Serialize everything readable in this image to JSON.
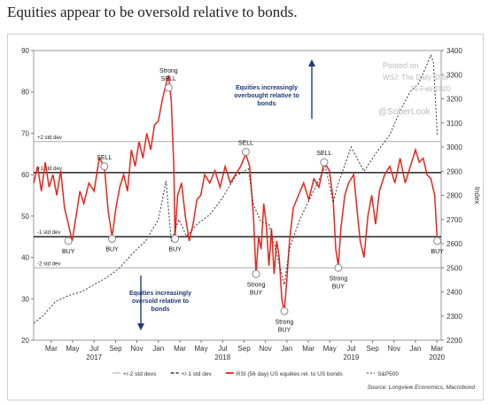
{
  "headline": "Equities appear to be oversold relative to bonds.",
  "chart_data": {
    "type": "line",
    "title": "",
    "y_left": {
      "ylim": [
        20,
        90
      ],
      "ticks": [
        20,
        30,
        40,
        50,
        60,
        70,
        80,
        90
      ]
    },
    "y_right": {
      "label": "Index",
      "ylim": [
        2200,
        3400
      ],
      "ticks": [
        2200,
        2300,
        2400,
        2500,
        2600,
        2700,
        2800,
        2900,
        3000,
        3100,
        3200,
        3300,
        3400
      ]
    },
    "x_ticks": [
      {
        "label": "Mar",
        "t": 2017.167
      },
      {
        "label": "May",
        "t": 2017.333
      },
      {
        "label": "Jul",
        "t": 2017.5
      },
      {
        "label": "Sep",
        "t": 2017.667
      },
      {
        "label": "Nov",
        "t": 2017.833
      },
      {
        "label": "Jan",
        "t": 2018.0
      },
      {
        "label": "Mar",
        "t": 2018.167
      },
      {
        "label": "May",
        "t": 2018.333
      },
      {
        "label": "Jul",
        "t": 2018.5
      },
      {
        "label": "Sep",
        "t": 2018.667
      },
      {
        "label": "Nov",
        "t": 2018.833
      },
      {
        "label": "Jan",
        "t": 2019.0
      },
      {
        "label": "Mar",
        "t": 2019.167
      },
      {
        "label": "May",
        "t": 2019.333
      },
      {
        "label": "Jul",
        "t": 2019.5
      },
      {
        "label": "Sep",
        "t": 2019.667
      },
      {
        "label": "Nov",
        "t": 2019.833
      },
      {
        "label": "Jan",
        "t": 2020.0
      },
      {
        "label": "Mar",
        "t": 2020.167
      }
    ],
    "year_labels": [
      {
        "label": "2017",
        "t": 2017.5
      },
      {
        "label": "2018",
        "t": 2018.5
      },
      {
        "label": "2019",
        "t": 2019.5
      },
      {
        "label": "2020",
        "t": 2020.167
      }
    ],
    "xlim": [
      2017.03,
      2020.2
    ],
    "reference_lines": [
      {
        "name": "+2 std dev",
        "value": 68,
        "style": "2sd"
      },
      {
        "name": "+1 std dev",
        "value": 60.5,
        "style": "1sd"
      },
      {
        "name": "-1 std dev",
        "value": 45,
        "style": "1sd"
      },
      {
        "name": "-2 std dev",
        "value": 37.5,
        "style": "2sd"
      }
    ],
    "series": [
      {
        "name": "RSI (56 day) US equities rel. to US bonds",
        "axis": "left",
        "color": "#e8251c",
        "points": [
          [
            2017.03,
            58
          ],
          [
            2017.06,
            62
          ],
          [
            2017.09,
            56
          ],
          [
            2017.12,
            63
          ],
          [
            2017.15,
            57
          ],
          [
            2017.18,
            60
          ],
          [
            2017.21,
            55
          ],
          [
            2017.24,
            61
          ],
          [
            2017.27,
            52
          ],
          [
            2017.3,
            48
          ],
          [
            2017.33,
            44
          ],
          [
            2017.36,
            50
          ],
          [
            2017.39,
            56
          ],
          [
            2017.42,
            53
          ],
          [
            2017.46,
            58
          ],
          [
            2017.5,
            56
          ],
          [
            2017.54,
            64
          ],
          [
            2017.58,
            62
          ],
          [
            2017.61,
            51
          ],
          [
            2017.64,
            45
          ],
          [
            2017.67,
            52
          ],
          [
            2017.7,
            57
          ],
          [
            2017.73,
            60
          ],
          [
            2017.76,
            56
          ],
          [
            2017.79,
            66
          ],
          [
            2017.82,
            62
          ],
          [
            2017.85,
            68
          ],
          [
            2017.88,
            64
          ],
          [
            2017.91,
            70
          ],
          [
            2017.94,
            66
          ],
          [
            2017.97,
            72
          ],
          [
            2018.0,
            73
          ],
          [
            2018.03,
            78
          ],
          [
            2018.06,
            82
          ],
          [
            2018.08,
            84
          ],
          [
            2018.1,
            78
          ],
          [
            2018.12,
            62
          ],
          [
            2018.13,
            45
          ],
          [
            2018.15,
            55
          ],
          [
            2018.18,
            58
          ],
          [
            2018.21,
            50
          ],
          [
            2018.24,
            44
          ],
          [
            2018.27,
            48
          ],
          [
            2018.3,
            54
          ],
          [
            2018.33,
            55
          ],
          [
            2018.36,
            60
          ],
          [
            2018.4,
            58
          ],
          [
            2018.44,
            61
          ],
          [
            2018.48,
            57
          ],
          [
            2018.52,
            62
          ],
          [
            2018.56,
            58
          ],
          [
            2018.6,
            60
          ],
          [
            2018.64,
            62
          ],
          [
            2018.68,
            65
          ],
          [
            2018.71,
            62
          ],
          [
            2018.74,
            50
          ],
          [
            2018.76,
            36
          ],
          [
            2018.78,
            45
          ],
          [
            2018.8,
            42
          ],
          [
            2018.82,
            53
          ],
          [
            2018.84,
            48
          ],
          [
            2018.86,
            38
          ],
          [
            2018.88,
            47
          ],
          [
            2018.9,
            36
          ],
          [
            2018.92,
            44
          ],
          [
            2018.94,
            40
          ],
          [
            2018.96,
            30
          ],
          [
            2018.98,
            27
          ],
          [
            2019.0,
            35
          ],
          [
            2019.02,
            44
          ],
          [
            2019.05,
            52
          ],
          [
            2019.09,
            55
          ],
          [
            2019.13,
            58
          ],
          [
            2019.17,
            54
          ],
          [
            2019.21,
            59
          ],
          [
            2019.25,
            57
          ],
          [
            2019.29,
            63
          ],
          [
            2019.33,
            61
          ],
          [
            2019.36,
            54
          ],
          [
            2019.38,
            42
          ],
          [
            2019.4,
            38
          ],
          [
            2019.42,
            47
          ],
          [
            2019.45,
            55
          ],
          [
            2019.48,
            58
          ],
          [
            2019.52,
            60
          ],
          [
            2019.55,
            50
          ],
          [
            2019.57,
            44
          ],
          [
            2019.6,
            40
          ],
          [
            2019.63,
            50
          ],
          [
            2019.66,
            55
          ],
          [
            2019.69,
            48
          ],
          [
            2019.72,
            56
          ],
          [
            2019.76,
            60
          ],
          [
            2019.8,
            62
          ],
          [
            2019.84,
            58
          ],
          [
            2019.88,
            64
          ],
          [
            2019.92,
            58
          ],
          [
            2019.96,
            62
          ],
          [
            2020.0,
            66
          ],
          [
            2020.03,
            63
          ],
          [
            2020.06,
            64
          ],
          [
            2020.09,
            60
          ],
          [
            2020.12,
            59
          ],
          [
            2020.15,
            55
          ],
          [
            2020.17,
            44
          ]
        ]
      },
      {
        "name": "S&P500",
        "axis": "right",
        "color": "#333333",
        "points": [
          [
            2017.03,
            2270
          ],
          [
            2017.1,
            2300
          ],
          [
            2017.2,
            2360
          ],
          [
            2017.3,
            2385
          ],
          [
            2017.4,
            2400
          ],
          [
            2017.5,
            2430
          ],
          [
            2017.6,
            2460
          ],
          [
            2017.7,
            2500
          ],
          [
            2017.8,
            2560
          ],
          [
            2017.9,
            2610
          ],
          [
            2018.0,
            2700
          ],
          [
            2018.06,
            2860
          ],
          [
            2018.1,
            2610
          ],
          [
            2018.16,
            2700
          ],
          [
            2018.22,
            2630
          ],
          [
            2018.3,
            2680
          ],
          [
            2018.4,
            2720
          ],
          [
            2018.5,
            2790
          ],
          [
            2018.6,
            2880
          ],
          [
            2018.7,
            2910
          ],
          [
            2018.74,
            2760
          ],
          [
            2018.8,
            2690
          ],
          [
            2018.86,
            2680
          ],
          [
            2018.92,
            2560
          ],
          [
            2018.98,
            2430
          ],
          [
            2019.02,
            2580
          ],
          [
            2019.1,
            2700
          ],
          [
            2019.2,
            2810
          ],
          [
            2019.3,
            2920
          ],
          [
            2019.36,
            2770
          ],
          [
            2019.4,
            2850
          ],
          [
            2019.5,
            3000
          ],
          [
            2019.6,
            2900
          ],
          [
            2019.7,
            2980
          ],
          [
            2019.8,
            3050
          ],
          [
            2019.88,
            3150
          ],
          [
            2019.96,
            3230
          ],
          [
            2020.02,
            3260
          ],
          [
            2020.08,
            3330
          ],
          [
            2020.12,
            3380
          ],
          [
            2020.14,
            3350
          ],
          [
            2020.17,
            3050
          ]
        ]
      }
    ],
    "annotations": [
      {
        "text": "Strong\nSELL",
        "t": 2018.08,
        "v": 81
      },
      {
        "text": "SELL",
        "t": 2017.58,
        "v": 62
      },
      {
        "text": "SELL",
        "t": 2018.68,
        "v": 65.5
      },
      {
        "text": "SELL",
        "t": 2019.29,
        "v": 63
      },
      {
        "text": "BUY",
        "t": 2017.3,
        "v": 44
      },
      {
        "text": "BUY",
        "t": 2017.64,
        "v": 44.5
      },
      {
        "text": "BUY",
        "t": 2018.13,
        "v": 44.5
      },
      {
        "text": "Strong\nBUY",
        "t": 2018.76,
        "v": 36
      },
      {
        "text": "Strong\nBUY",
        "t": 2018.98,
        "v": 27
      },
      {
        "text": "Strong\nBUY",
        "t": 2019.4,
        "v": 37.5
      },
      {
        "text": "BUY",
        "t": 2020.17,
        "v": 44
      }
    ],
    "callouts": {
      "overbought": "Equities increasingly overbought relative to bonds",
      "oversold": "Equities increasingly oversold relative to bonds"
    },
    "watermark": [
      "Posted on",
      "WSJ: The Daily Shot",
      "25-Feb-2020",
      "@SoberLook"
    ],
    "legend": [
      {
        "label": "+/-2 std devs",
        "style": "2sd"
      },
      {
        "label": "+/-1 std dev",
        "style": "1sd"
      },
      {
        "label": "RSI (56 day) US equities rel. to US bonds",
        "style": "rsi"
      },
      {
        "label": "S&P500",
        "style": "spx"
      }
    ],
    "source": "Source: Longview Economics, Macrobond"
  }
}
